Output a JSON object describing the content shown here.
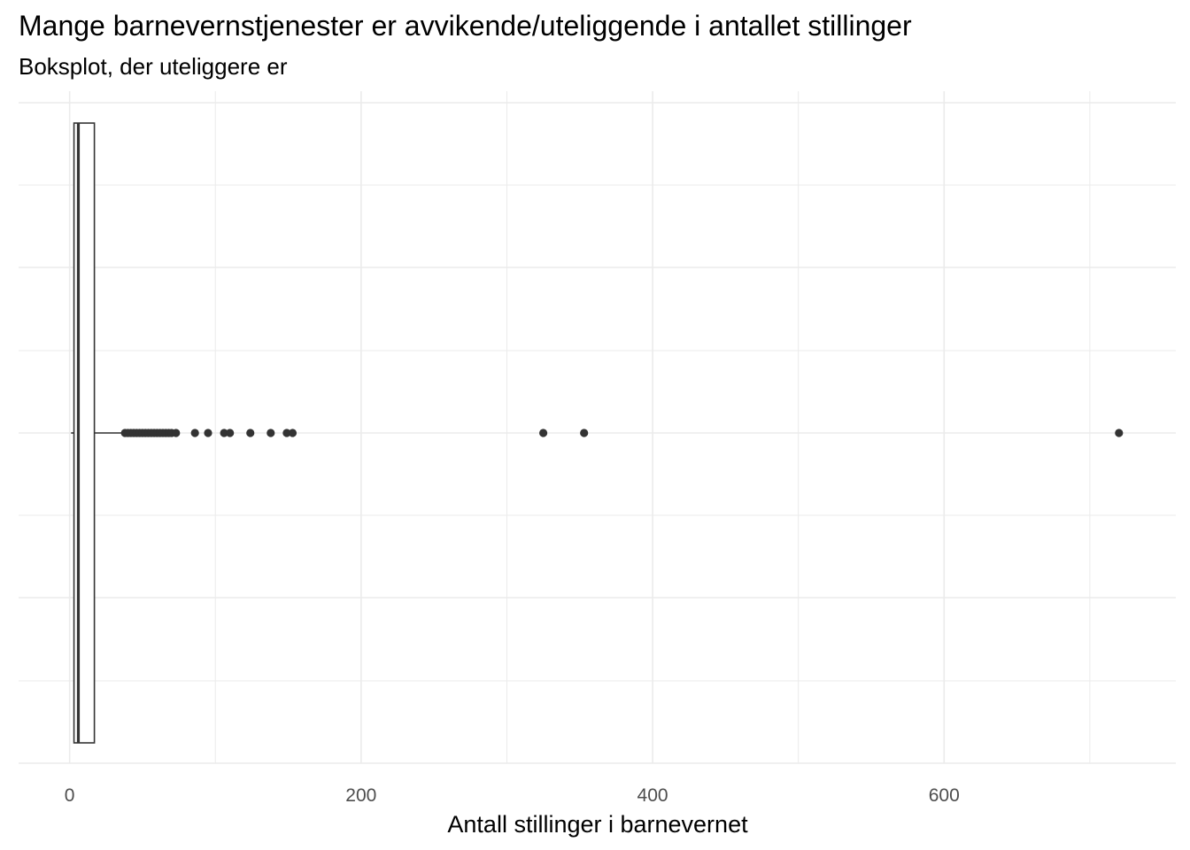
{
  "chart_data": {
    "type": "boxplot",
    "title": "Mange barnevernstjenester er avvikende/uteliggende i antallet stillinger",
    "subtitle": "Boksplot, der uteliggere er",
    "xlabel": "Antall stillinger i barnevernet",
    "ylabel": "",
    "xlim": [
      -35,
      759
    ],
    "x_ticks": [
      0,
      200,
      400,
      600
    ],
    "x_minor": [
      100,
      300,
      500,
      700
    ],
    "grid": true,
    "box": {
      "whisker_low": 1,
      "q1": 3,
      "median": 6,
      "q3": 17,
      "whisker_high": 37
    },
    "outliers": [
      38,
      40,
      42,
      44,
      46,
      48,
      50,
      52,
      54,
      56,
      58,
      60,
      62,
      64,
      66,
      68,
      70,
      73,
      86,
      95,
      106,
      110,
      124,
      138,
      149,
      153,
      325,
      353,
      720
    ],
    "colors": {
      "grid": "#ebebeb",
      "box_stroke": "#333333",
      "point": "#333333",
      "text": "#000000",
      "tick_text": "#4d4d4d"
    }
  }
}
